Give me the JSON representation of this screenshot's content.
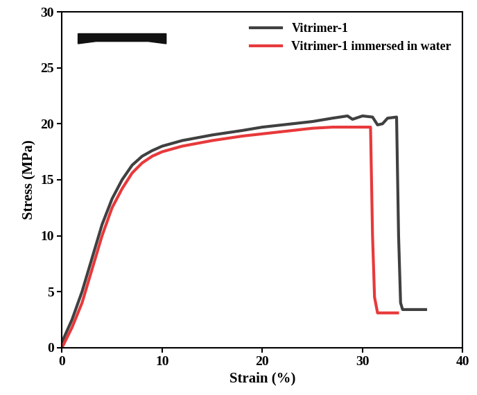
{
  "chart_data": {
    "type": "line",
    "x_label": "Strain (%)",
    "y_label": "Stress (MPa)",
    "xlim": [
      0,
      40
    ],
    "xticks": [
      0,
      10,
      20,
      30,
      40
    ],
    "ylim": [
      0,
      30
    ],
    "yticks": [
      0,
      5,
      10,
      15,
      20,
      25,
      30
    ],
    "legend": "upper right",
    "grid": false,
    "series": [
      {
        "name": "Vitrimer-1",
        "color": "#404040",
        "line_style": "solid",
        "x": [
          0,
          1,
          2,
          3,
          4,
          5,
          6,
          7,
          8,
          9,
          10,
          12,
          15,
          18,
          20,
          22,
          25,
          27,
          28.5,
          29,
          30,
          31,
          31.5,
          32,
          32.5,
          33.4,
          33.6,
          33.8,
          34,
          36.3
        ],
        "values": [
          0.5,
          2.5,
          5,
          8,
          11,
          13.3,
          15,
          16.3,
          17.1,
          17.6,
          18,
          18.5,
          19,
          19.4,
          19.7,
          19.9,
          20.2,
          20.5,
          20.7,
          20.4,
          20.7,
          20.6,
          19.9,
          20,
          20.5,
          20.6,
          10,
          4,
          3.4,
          3.4
        ]
      },
      {
        "name": "Vitrimer-1 immersed in water",
        "color": "#e8393b",
        "line_style": "solid",
        "x": [
          0,
          1,
          2,
          3,
          4,
          5,
          6,
          7,
          8,
          9,
          10,
          12,
          15,
          18,
          20,
          22,
          25,
          27,
          30.8,
          31,
          31.2,
          31.5,
          33.5
        ],
        "values": [
          0,
          1.8,
          4,
          7,
          10,
          12.5,
          14.2,
          15.6,
          16.5,
          17.1,
          17.5,
          18,
          18.5,
          18.9,
          19.1,
          19.3,
          19.6,
          19.7,
          19.7,
          10,
          4.5,
          3.1,
          3.1
        ]
      }
    ]
  }
}
